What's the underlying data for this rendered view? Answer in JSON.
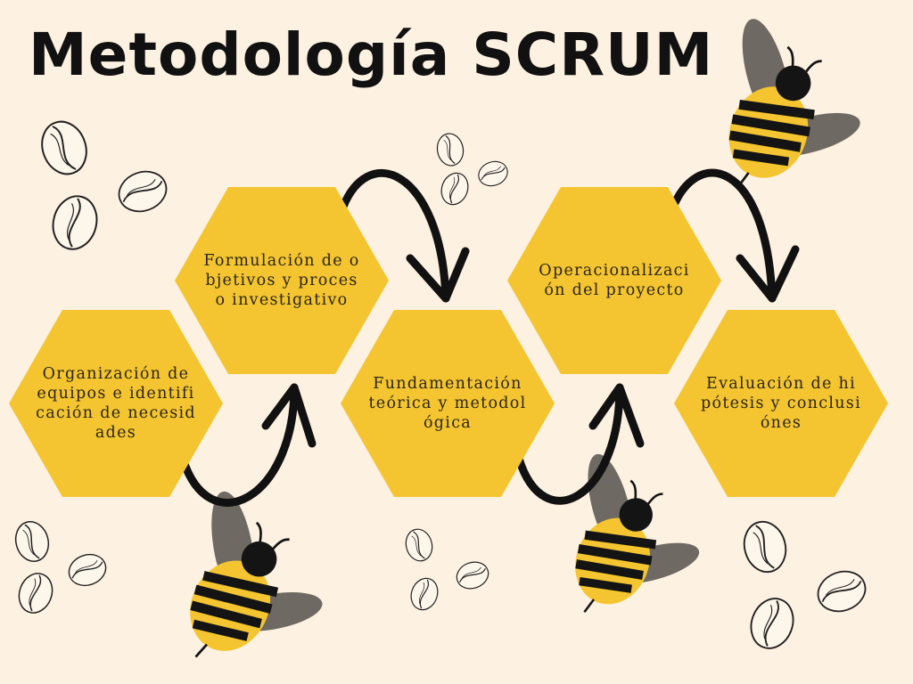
{
  "title": "Metodología SCRUM",
  "steps": [
    {
      "label": "Organización de equipos e identificación de necesidades"
    },
    {
      "label": "Formulación de objetivos y proceso investigativo"
    },
    {
      "label": "Fundamentación teórica y metodológica"
    },
    {
      "label": "Operacionalización del proyecto"
    },
    {
      "label": "Evaluación de hipótesis y conclusiónes"
    }
  ],
  "colors": {
    "background": "#fdf1e1",
    "hexagon": "#f4c530",
    "bee_yellow": "#f4c530",
    "bee_stripe": "#141414",
    "bee_wing": "#6e6a63",
    "text": "#2a2414"
  },
  "icons": [
    "bee-icon",
    "coffee-bean-icon",
    "curved-arrow-icon"
  ]
}
